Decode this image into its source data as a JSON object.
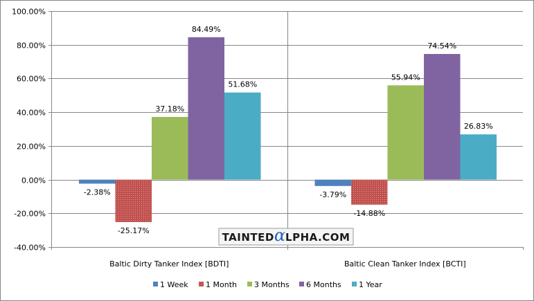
{
  "chart_data": {
    "type": "bar",
    "categories": [
      "Baltic Dirty Tanker Index [BDTI]",
      "Baltic Clean Tanker Index [BCTI]"
    ],
    "series": [
      {
        "name": "1 Week",
        "values": [
          -2.38,
          -3.79
        ],
        "labels": [
          "-2.38%",
          "-3.79%"
        ],
        "color": "#4f81bd"
      },
      {
        "name": "1 Month",
        "values": [
          -25.17,
          -14.88
        ],
        "labels": [
          "-25.17%",
          "-14.88%"
        ],
        "color": "#c0504d"
      },
      {
        "name": "3 Months",
        "values": [
          37.18,
          55.94
        ],
        "labels": [
          "37.18%",
          "55.94%"
        ],
        "color": "#9bbb59"
      },
      {
        "name": "6 Months",
        "values": [
          84.49,
          74.54
        ],
        "labels": [
          "84.49%",
          "74.54%"
        ],
        "color": "#8064a2"
      },
      {
        "name": "1 Year",
        "values": [
          51.68,
          26.83
        ],
        "labels": [
          "51.68%",
          "26.83%"
        ],
        "color": "#4bacc6"
      }
    ],
    "ylim": [
      -40,
      100
    ],
    "yticks": [
      -40,
      -20,
      0,
      20,
      40,
      60,
      80,
      100
    ],
    "ytick_labels": [
      "-40.00%",
      "-20.00%",
      "0.00%",
      "20.00%",
      "40.00%",
      "60.00%",
      "80.00%",
      "100.00%"
    ],
    "grid": true,
    "legend_position": "bottom",
    "title": "",
    "xlabel": "",
    "ylabel": ""
  },
  "watermark": {
    "prefix": "TAINTED",
    "glyph": "α",
    "suffix": "LPHA.COM"
  }
}
